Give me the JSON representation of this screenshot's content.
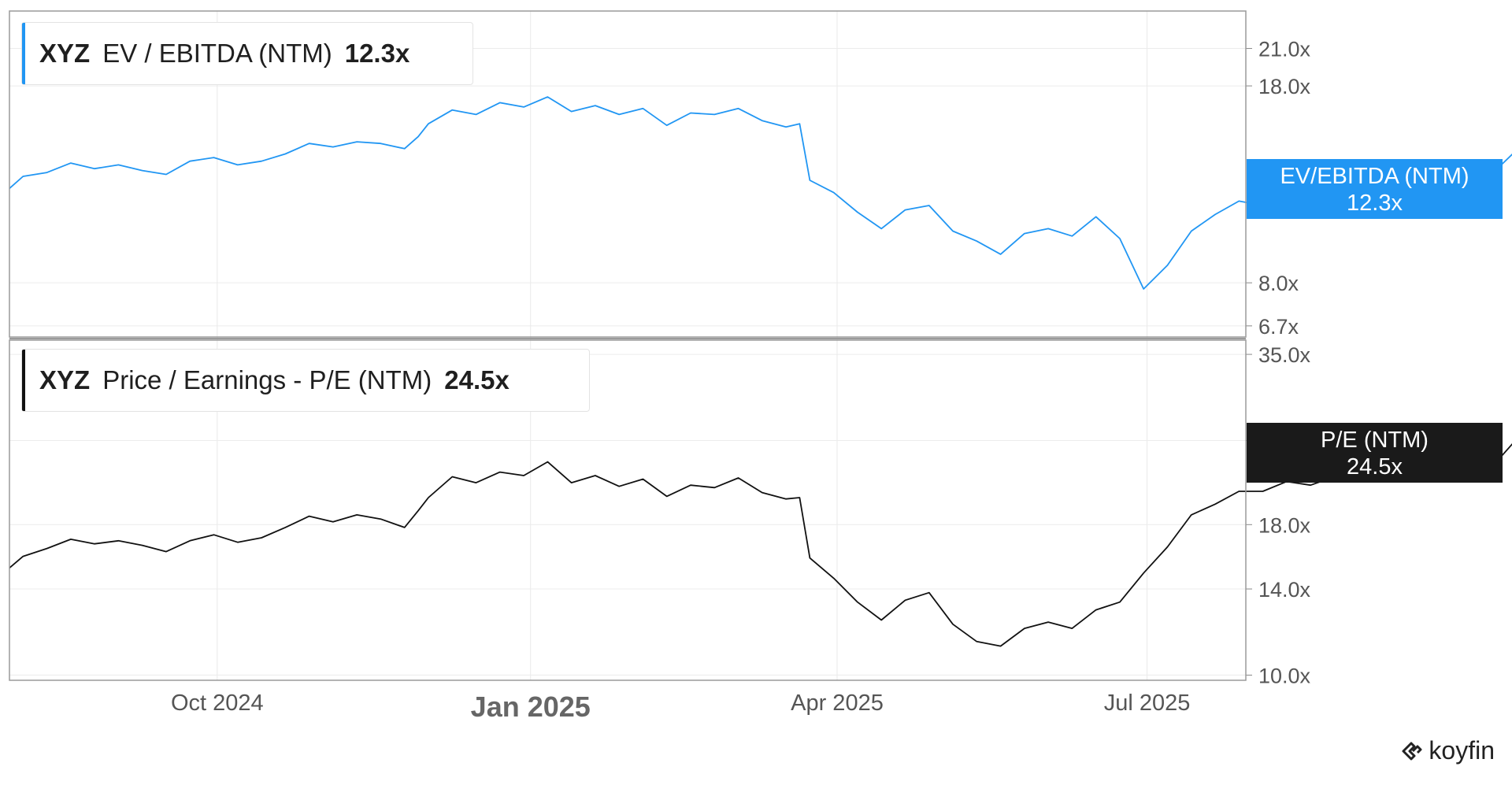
{
  "chart_data": [
    {
      "type": "line",
      "ticker": "XYZ",
      "title": "EV / EBITDA (NTM)",
      "last_value_label": "12.3x",
      "tag_label": "EV/EBITDA (NTM)",
      "color": "#2196f3",
      "scale": "log",
      "ylim": [
        6.4,
        24.5
      ],
      "yticks": [
        "21.0x",
        "18.0x",
        "8.0x",
        "6.7x"
      ],
      "ytick_values": [
        21.0,
        18.0,
        8.0,
        6.7
      ],
      "x_start": "2024-08-01",
      "x_end": "2025-07-30",
      "points": [
        [
          "2024-08-01",
          11.8
        ],
        [
          "2024-08-05",
          12.4
        ],
        [
          "2024-08-12",
          12.6
        ],
        [
          "2024-08-19",
          13.1
        ],
        [
          "2024-08-26",
          12.8
        ],
        [
          "2024-09-02",
          13.0
        ],
        [
          "2024-09-09",
          12.7
        ],
        [
          "2024-09-16",
          12.5
        ],
        [
          "2024-09-23",
          13.2
        ],
        [
          "2024-09-30",
          13.4
        ],
        [
          "2024-10-07",
          13.0
        ],
        [
          "2024-10-14",
          13.2
        ],
        [
          "2024-10-21",
          13.6
        ],
        [
          "2024-10-28",
          14.2
        ],
        [
          "2024-11-04",
          14.0
        ],
        [
          "2024-11-11",
          14.3
        ],
        [
          "2024-11-18",
          14.2
        ],
        [
          "2024-11-25",
          13.9
        ],
        [
          "2024-11-29",
          14.6
        ],
        [
          "2024-12-02",
          15.4
        ],
        [
          "2024-12-09",
          16.3
        ],
        [
          "2024-12-16",
          16.0
        ],
        [
          "2024-12-23",
          16.8
        ],
        [
          "2024-12-30",
          16.5
        ],
        [
          "2025-01-06",
          17.2
        ],
        [
          "2025-01-13",
          16.2
        ],
        [
          "2025-01-20",
          16.6
        ],
        [
          "2025-01-27",
          16.0
        ],
        [
          "2025-02-03",
          16.4
        ],
        [
          "2025-02-10",
          15.3
        ],
        [
          "2025-02-17",
          16.1
        ],
        [
          "2025-02-24",
          16.0
        ],
        [
          "2025-03-03",
          16.4
        ],
        [
          "2025-03-10",
          15.6
        ],
        [
          "2025-03-17",
          15.2
        ],
        [
          "2025-03-21",
          15.4
        ],
        [
          "2025-03-24",
          12.2
        ],
        [
          "2025-03-31",
          11.6
        ],
        [
          "2025-04-07",
          10.7
        ],
        [
          "2025-04-14",
          10.0
        ],
        [
          "2025-04-21",
          10.8
        ],
        [
          "2025-04-28",
          11.0
        ],
        [
          "2025-05-05",
          9.9
        ],
        [
          "2025-05-12",
          9.5
        ],
        [
          "2025-05-19",
          9.0
        ],
        [
          "2025-05-26",
          9.8
        ],
        [
          "2025-06-02",
          10.0
        ],
        [
          "2025-06-09",
          9.7
        ],
        [
          "2025-06-16",
          10.5
        ],
        [
          "2025-06-23",
          9.6
        ],
        [
          "2025-06-30",
          7.8
        ],
        [
          "2025-07-07",
          8.6
        ],
        [
          "2025-07-14",
          9.9
        ],
        [
          "2025-07-21",
          10.6
        ],
        [
          "2025-07-28",
          11.2
        ],
        [
          "2025-08-04",
          11.0
        ],
        [
          "2025-08-11",
          11.6
        ],
        [
          "2025-08-18",
          11.2
        ],
        [
          "2025-08-25",
          11.9
        ],
        [
          "2025-09-01",
          11.6
        ],
        [
          "2025-09-08",
          12.0
        ],
        [
          "2025-09-15",
          12.4
        ],
        [
          "2025-09-22",
          12.7
        ],
        [
          "2025-09-29",
          12.6
        ],
        [
          "2025-10-06",
          12.0
        ],
        [
          "2025-10-13",
          13.0
        ],
        [
          "2025-10-20",
          14.3
        ],
        [
          "2025-10-27",
          14.1
        ],
        [
          "2025-11-03",
          13.6
        ],
        [
          "2025-11-07",
          12.3
        ]
      ]
    },
    {
      "type": "line",
      "ticker": "XYZ",
      "title": "Price / Earnings - P/E (NTM)",
      "last_value_label": "24.5x",
      "tag_label": "P/E (NTM)",
      "color": "#111111",
      "scale": "log",
      "ylim": [
        9.8,
        37.0
      ],
      "yticks": [
        "35.0x",
        "25.0x",
        "18.0x",
        "14.0x",
        "10.0x"
      ],
      "ytick_values": [
        35.0,
        25.0,
        18.0,
        14.0,
        10.0
      ],
      "points": [
        [
          "2024-08-01",
          15.2
        ],
        [
          "2024-08-05",
          15.9
        ],
        [
          "2024-08-12",
          16.4
        ],
        [
          "2024-08-19",
          17.0
        ],
        [
          "2024-08-26",
          16.7
        ],
        [
          "2024-09-02",
          16.9
        ],
        [
          "2024-09-09",
          16.6
        ],
        [
          "2024-09-16",
          16.2
        ],
        [
          "2024-09-23",
          16.9
        ],
        [
          "2024-09-30",
          17.3
        ],
        [
          "2024-10-07",
          16.8
        ],
        [
          "2024-10-14",
          17.1
        ],
        [
          "2024-10-21",
          17.8
        ],
        [
          "2024-10-28",
          18.6
        ],
        [
          "2024-11-04",
          18.2
        ],
        [
          "2024-11-11",
          18.7
        ],
        [
          "2024-11-18",
          18.4
        ],
        [
          "2024-11-25",
          17.8
        ],
        [
          "2024-11-29",
          19.0
        ],
        [
          "2024-12-02",
          20.0
        ],
        [
          "2024-12-09",
          21.7
        ],
        [
          "2024-12-16",
          21.2
        ],
        [
          "2024-12-23",
          22.1
        ],
        [
          "2024-12-30",
          21.8
        ],
        [
          "2025-01-06",
          23.0
        ],
        [
          "2025-01-13",
          21.2
        ],
        [
          "2025-01-20",
          21.8
        ],
        [
          "2025-01-27",
          20.9
        ],
        [
          "2025-02-03",
          21.5
        ],
        [
          "2025-02-10",
          20.1
        ],
        [
          "2025-02-17",
          21.0
        ],
        [
          "2025-02-24",
          20.8
        ],
        [
          "2025-03-03",
          21.6
        ],
        [
          "2025-03-10",
          20.4
        ],
        [
          "2025-03-17",
          19.9
        ],
        [
          "2025-03-21",
          20.0
        ],
        [
          "2025-03-24",
          15.8
        ],
        [
          "2025-03-31",
          14.6
        ],
        [
          "2025-04-07",
          13.3
        ],
        [
          "2025-04-14",
          12.4
        ],
        [
          "2025-04-21",
          13.4
        ],
        [
          "2025-04-28",
          13.8
        ],
        [
          "2025-05-05",
          12.2
        ],
        [
          "2025-05-12",
          11.4
        ],
        [
          "2025-05-19",
          11.2
        ],
        [
          "2025-05-26",
          12.0
        ],
        [
          "2025-06-02",
          12.3
        ],
        [
          "2025-06-09",
          12.0
        ],
        [
          "2025-06-16",
          12.9
        ],
        [
          "2025-06-23",
          13.3
        ],
        [
          "2025-06-30",
          14.9
        ],
        [
          "2025-07-07",
          16.5
        ],
        [
          "2025-07-14",
          18.7
        ],
        [
          "2025-07-21",
          19.5
        ],
        [
          "2025-07-28",
          20.5
        ],
        [
          "2025-08-04",
          20.5
        ],
        [
          "2025-08-11",
          21.3
        ],
        [
          "2025-08-18",
          21.0
        ],
        [
          "2025-08-25",
          21.7
        ],
        [
          "2025-09-01",
          21.3
        ],
        [
          "2025-09-08",
          22.0
        ],
        [
          "2025-09-15",
          22.5
        ],
        [
          "2025-09-22",
          23.0
        ],
        [
          "2025-09-29",
          22.7
        ],
        [
          "2025-10-06",
          22.0
        ],
        [
          "2025-10-13",
          23.5
        ],
        [
          "2025-10-20",
          26.1
        ],
        [
          "2025-10-27",
          25.8
        ],
        [
          "2025-11-03",
          25.2
        ],
        [
          "2025-11-07",
          24.5
        ]
      ]
    }
  ],
  "x_axis": {
    "ticks": [
      {
        "label": "Oct 2024",
        "date": "2024-10-01",
        "bold": false
      },
      {
        "label": "Jan 2025",
        "date": "2025-01-01",
        "bold": true
      },
      {
        "label": "Apr 2025",
        "date": "2025-04-01",
        "bold": false
      },
      {
        "label": "Jul 2025",
        "date": "2025-07-01",
        "bold": false
      }
    ]
  },
  "brand": "koyfin"
}
